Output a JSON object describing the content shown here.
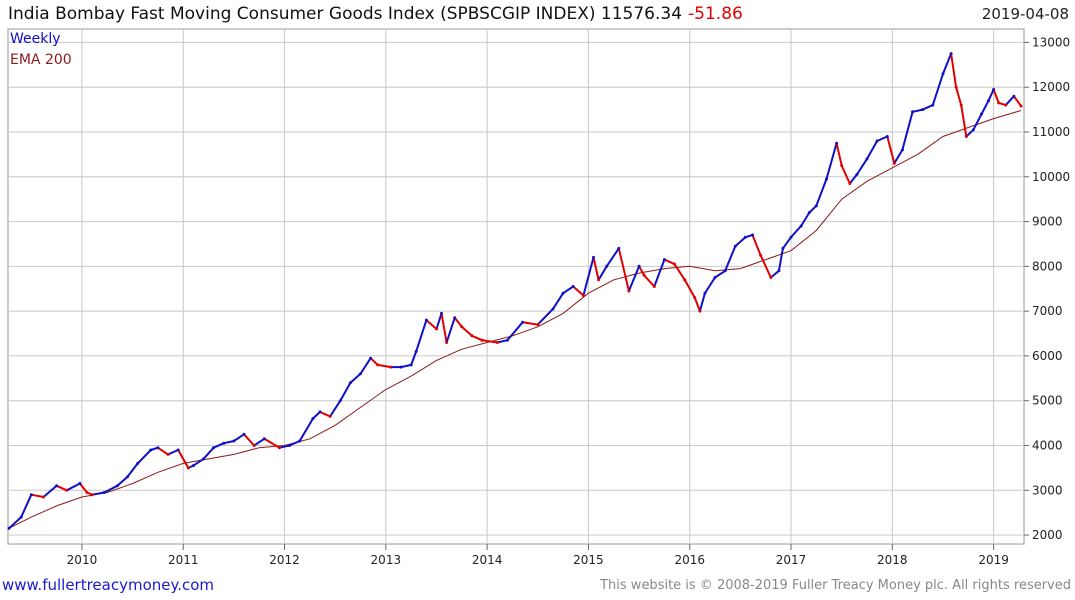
{
  "header": {
    "title": "India Bombay Fast Moving Consumer Goods Index (SPBSCGIP INDEX) 11576.34",
    "change": "-51.86",
    "date": "2019-04-08"
  },
  "footer": {
    "left": "www.fullertreacymoney.com",
    "right": "This website is © 2008-2019 Fuller Treacy Money plc. All rights reserved"
  },
  "chart_data": {
    "type": "line",
    "title": "India Bombay Fast Moving Consumer Goods Index (SPBSCGIP INDEX)",
    "xlabel": "",
    "ylabel": "",
    "x_ticks": [
      "2010",
      "2011",
      "2012",
      "2013",
      "2014",
      "2015",
      "2016",
      "2017",
      "2018",
      "2019"
    ],
    "y_ticks": [
      2000,
      3000,
      4000,
      5000,
      6000,
      7000,
      8000,
      9000,
      10000,
      11000,
      12000,
      13000
    ],
    "ylim": [
      1800,
      13300
    ],
    "xlim": [
      2009.27,
      2019.3
    ],
    "grid": true,
    "legend_position": "top-left",
    "colors": {
      "up": "#1010c8",
      "down": "#e00000",
      "ema": "#8b1a1a",
      "grid": "#c8c8c8"
    },
    "series": [
      {
        "name": "Weekly",
        "x": [
          2009.28,
          2009.4,
          2009.5,
          2009.62,
          2009.75,
          2009.85,
          2009.98,
          2010.05,
          2010.1,
          2010.22,
          2010.35,
          2010.45,
          2010.55,
          2010.68,
          2010.75,
          2010.85,
          2010.95,
          2011.05,
          2011.1,
          2011.2,
          2011.3,
          2011.4,
          2011.5,
          2011.6,
          2011.7,
          2011.8,
          2011.95,
          2012.05,
          2012.15,
          2012.28,
          2012.35,
          2012.45,
          2012.55,
          2012.65,
          2012.75,
          2012.85,
          2012.92,
          2013.05,
          2013.15,
          2013.25,
          2013.3,
          2013.4,
          2013.5,
          2013.55,
          2013.6,
          2013.68,
          2013.75,
          2013.85,
          2013.95,
          2014.1,
          2014.2,
          2014.35,
          2014.5,
          2014.65,
          2014.75,
          2014.85,
          2014.95,
          2015.05,
          2015.1,
          2015.18,
          2015.3,
          2015.4,
          2015.5,
          2015.55,
          2015.65,
          2015.75,
          2015.85,
          2015.95,
          2016.05,
          2016.1,
          2016.15,
          2016.25,
          2016.35,
          2016.45,
          2016.55,
          2016.62,
          2016.7,
          2016.8,
          2016.88,
          2016.92,
          2017.0,
          2017.1,
          2017.18,
          2017.25,
          2017.35,
          2017.45,
          2017.5,
          2017.58,
          2017.65,
          2017.75,
          2017.85,
          2017.95,
          2018.02,
          2018.1,
          2018.2,
          2018.3,
          2018.4,
          2018.5,
          2018.58,
          2018.63,
          2018.68,
          2018.73,
          2018.8,
          2018.88,
          2018.95,
          2019.0,
          2019.05,
          2019.12,
          2019.2,
          2019.27
        ],
        "values": [
          2150,
          2400,
          2900,
          2850,
          3100,
          3000,
          3150,
          2950,
          2900,
          2950,
          3100,
          3300,
          3600,
          3900,
          3950,
          3800,
          3900,
          3500,
          3550,
          3700,
          3950,
          4050,
          4100,
          4250,
          4000,
          4150,
          3950,
          4000,
          4100,
          4600,
          4750,
          4650,
          5000,
          5400,
          5600,
          5950,
          5800,
          5750,
          5750,
          5800,
          6100,
          6800,
          6600,
          6950,
          6300,
          6850,
          6650,
          6450,
          6350,
          6300,
          6350,
          6750,
          6700,
          7050,
          7400,
          7550,
          7350,
          8200,
          7700,
          8000,
          8400,
          7450,
          8000,
          7800,
          7550,
          8150,
          8050,
          7700,
          7300,
          7000,
          7400,
          7750,
          7900,
          8450,
          8650,
          8700,
          8250,
          7750,
          7900,
          8400,
          8650,
          8900,
          9200,
          9350,
          9950,
          10750,
          10250,
          9850,
          10050,
          10400,
          10800,
          10900,
          10300,
          10600,
          11450,
          11500,
          11600,
          12300,
          12750,
          12000,
          11600,
          10900,
          11050,
          11400,
          11700,
          11950,
          11650,
          11600,
          11800,
          11580
        ]
      },
      {
        "name": "EMA 200",
        "x": [
          2009.28,
          2009.5,
          2009.75,
          2010.0,
          2010.25,
          2010.5,
          2010.75,
          2011.0,
          2011.25,
          2011.5,
          2011.75,
          2012.0,
          2012.25,
          2012.5,
          2012.75,
          2013.0,
          2013.25,
          2013.5,
          2013.75,
          2014.0,
          2014.25,
          2014.5,
          2014.75,
          2015.0,
          2015.25,
          2015.5,
          2015.75,
          2016.0,
          2016.25,
          2016.5,
          2016.75,
          2017.0,
          2017.25,
          2017.5,
          2017.75,
          2018.0,
          2018.25,
          2018.5,
          2018.75,
          2019.0,
          2019.27
        ],
        "values": [
          2150,
          2400,
          2650,
          2850,
          2950,
          3150,
          3400,
          3600,
          3700,
          3800,
          3950,
          4000,
          4150,
          4450,
          4850,
          5250,
          5550,
          5900,
          6150,
          6300,
          6450,
          6650,
          6950,
          7400,
          7700,
          7850,
          7950,
          8000,
          7900,
          7950,
          8150,
          8350,
          8800,
          9500,
          9900,
          10200,
          10500,
          10900,
          11100,
          11300,
          11480
        ]
      }
    ]
  }
}
